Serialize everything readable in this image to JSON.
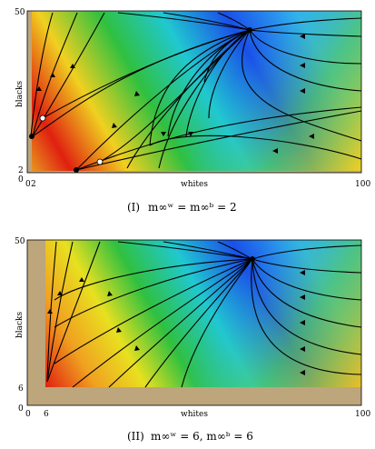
{
  "panels": [
    {
      "y_tick_top": "50",
      "y_tick_low": "2",
      "origin_y": "0",
      "x_tick_origin": "0",
      "x_tick_low": "2",
      "x_tick_high": "100",
      "x_label": "whites",
      "y_label": "blacks",
      "caption_num": "(I)",
      "caption_formula": "m∞ʷ = m∞ᵇ = 2"
    },
    {
      "y_tick_top": "50",
      "y_tick_low": "6",
      "origin_y": "0",
      "x_tick_origin": "0",
      "x_tick_low": "6",
      "x_tick_high": "100",
      "x_label": "whites",
      "y_label": "blacks",
      "caption_num": "(II)",
      "caption_formula": "m∞ʷ = 6, m∞ᵇ = 6"
    }
  ],
  "colors": {
    "margin_band": "#bda57c",
    "field_low": "#e02010",
    "field_mid": "#20c040",
    "field_high": "#1040e0"
  }
}
